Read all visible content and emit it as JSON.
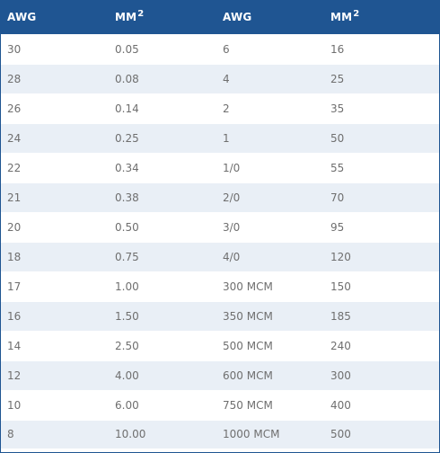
{
  "table": {
    "headers": [
      {
        "text": "AWG",
        "sup": ""
      },
      {
        "text": "MM",
        "sup": "2"
      },
      {
        "text": "AWG",
        "sup": ""
      },
      {
        "text": "MM",
        "sup": "2"
      }
    ],
    "rows": [
      [
        "30",
        "0.05",
        "6",
        "16"
      ],
      [
        "28",
        "0.08",
        "4",
        "25"
      ],
      [
        "26",
        "0.14",
        "2",
        "35"
      ],
      [
        "24",
        "0.25",
        "1",
        "50"
      ],
      [
        "22",
        "0.34",
        "1/0",
        "55"
      ],
      [
        "21",
        "0.38",
        "2/0",
        "70"
      ],
      [
        "20",
        "0.50",
        "3/0",
        "95"
      ],
      [
        "18",
        "0.75",
        "4/0",
        "120"
      ],
      [
        "17",
        "1.00",
        "300 MCM",
        "150"
      ],
      [
        "16",
        "1.50",
        "350 MCM",
        "185"
      ],
      [
        "14",
        "2.50",
        "500 MCM",
        "240"
      ],
      [
        "12",
        "4.00",
        "600 MCM",
        "300"
      ],
      [
        "10",
        "6.00",
        "750 MCM",
        "400"
      ],
      [
        "8",
        "10.00",
        "1000 MCM",
        "500"
      ]
    ]
  },
  "colors": {
    "header_bg": "#1f5592",
    "header_text": "#ffffff",
    "row_alt_bg": "#e9eff6",
    "cell_text": "#6f6f6f"
  }
}
